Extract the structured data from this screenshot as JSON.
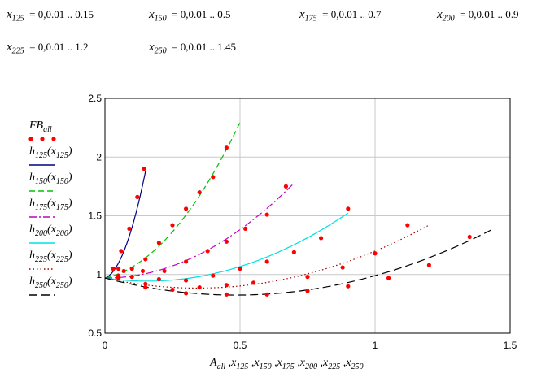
{
  "definitions": [
    {
      "var": "x",
      "sub": "125",
      "range": "= 0,0.01 .. 0.15"
    },
    {
      "var": "x",
      "sub": "150",
      "range": "= 0,0.01 .. 0.5"
    },
    {
      "var": "x",
      "sub": "175",
      "range": "= 0,0.01 .. 0.7"
    },
    {
      "var": "x",
      "sub": "200",
      "range": "= 0,0.01 .. 0.9"
    },
    {
      "var": "x",
      "sub": "225",
      "range": "= 0,0.01 .. 1.2"
    },
    {
      "var": "x",
      "sub": "250",
      "range": "= 0,0.01 .. 1.45"
    }
  ],
  "chart_data": {
    "type": "scatter",
    "title": "",
    "xlabel": "A_all, x_125, x_150, x_175, x_200, x_225, x_250",
    "xlabel_parts": [
      {
        "base": "A",
        "sub": "all",
        "sep": ","
      },
      {
        "base": "x",
        "sub": "125",
        "sep": ","
      },
      {
        "base": "x",
        "sub": "150",
        "sep": ","
      },
      {
        "base": "x",
        "sub": "175",
        "sep": ","
      },
      {
        "base": "x",
        "sub": "200",
        "sep": ","
      },
      {
        "base": "x",
        "sub": "225",
        "sep": ","
      },
      {
        "base": "x",
        "sub": "250",
        "sep": ""
      }
    ],
    "ylabel": "",
    "xlim": [
      0,
      1.5
    ],
    "ylim": [
      0.5,
      2.5
    ],
    "x_ticks": [
      0,
      0.5,
      1,
      1.5
    ],
    "x_tick_labels": [
      "0",
      "0.5",
      "1",
      "1.5"
    ],
    "y_ticks": [
      0.5,
      1,
      1.5,
      2,
      2.5
    ],
    "y_tick_labels": [
      "0.5",
      "1",
      "1.5",
      "2",
      "2.5"
    ],
    "grid": true,
    "legend_position": "left-outside",
    "points": {
      "name": "FB_all",
      "name_base": "FB",
      "name_sub": "all",
      "color": "#ff0000",
      "x": [
        0.03,
        0.06,
        0.09,
        0.12,
        0.145,
        0.05,
        0.1,
        0.15,
        0.2,
        0.25,
        0.3,
        0.35,
        0.4,
        0.45,
        0.07,
        0.14,
        0.22,
        0.3,
        0.38,
        0.45,
        0.52,
        0.6,
        0.67,
        0.05,
        0.1,
        0.2,
        0.3,
        0.4,
        0.5,
        0.6,
        0.7,
        0.8,
        0.9,
        0.05,
        0.15,
        0.25,
        0.35,
        0.45,
        0.55,
        0.75,
        0.88,
        1.0,
        1.12,
        0.05,
        0.15,
        0.3,
        0.45,
        0.6,
        0.75,
        0.9,
        1.05,
        1.2,
        1.35
      ],
      "y": [
        1.05,
        1.2,
        1.39,
        1.66,
        1.9,
        1.05,
        1.05,
        1.13,
        1.27,
        1.42,
        1.56,
        1.7,
        1.83,
        2.08,
        1.03,
        1.03,
        1.03,
        1.11,
        1.2,
        1.28,
        1.39,
        1.51,
        1.75,
        0.98,
        0.98,
        0.96,
        0.95,
        0.99,
        1.05,
        1.11,
        1.19,
        1.31,
        1.56,
        0.99,
        0.92,
        0.87,
        0.89,
        0.91,
        0.93,
        0.98,
        1.06,
        1.18,
        1.42,
        0.97,
        0.89,
        0.84,
        0.83,
        0.83,
        0.86,
        0.9,
        0.97,
        1.08,
        1.32
      ]
    },
    "series": [
      {
        "name": "h125(x125)",
        "base": "h",
        "sub": "125",
        "color": "#000080",
        "dash": "",
        "xmax": 0.15,
        "coef": [
          0.97,
          0.8,
          35.0
        ]
      },
      {
        "name": "h150(x150)",
        "base": "h",
        "sub": "150",
        "color": "#00c000",
        "dash": "7,4",
        "xmax": 0.5,
        "coef": [
          0.97,
          0.5,
          4.3
        ]
      },
      {
        "name": "h175(x175)",
        "base": "h",
        "sub": "175",
        "color": "#c000c0",
        "dash": "9,3,2,3",
        "xmax": 0.7,
        "coef": [
          0.97,
          0.0,
          1.65
        ]
      },
      {
        "name": "h200(x200)",
        "base": "h",
        "sub": "200",
        "color": "#00e0e0",
        "dash": "",
        "xmax": 0.9,
        "coef": [
          0.97,
          -0.33,
          1.05
        ]
      },
      {
        "name": "h225(x225)",
        "base": "h",
        "sub": "225",
        "color": "#a00000",
        "dash": "1.5,3",
        "xmax": 1.2,
        "coef": [
          0.97,
          -0.5,
          0.73
        ]
      },
      {
        "name": "h250(x250)",
        "base": "h",
        "sub": "250",
        "color": "#000000",
        "dash": "10,5",
        "xmax": 1.43,
        "coef": [
          0.97,
          -0.6,
          0.62
        ]
      }
    ]
  }
}
